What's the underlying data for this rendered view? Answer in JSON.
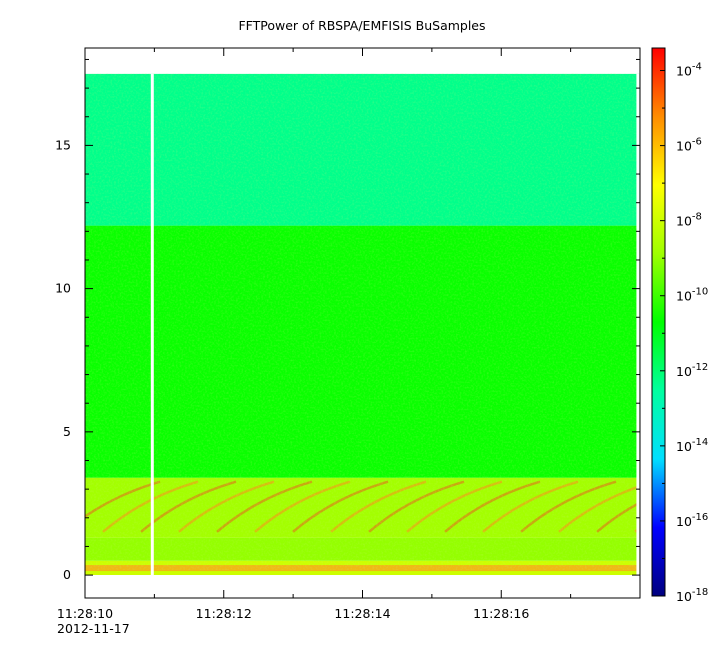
{
  "chart_data": {
    "type": "heatmap",
    "title": "FFTPower of RBSPA/EMFISIS  BuSamples",
    "xlabel": "",
    "ylabel": "",
    "x_ticks": [
      "11:28:10",
      "11:28:12",
      "11:28:14",
      "11:28:16"
    ],
    "x_date_label": "2012-11-17",
    "x_range_seconds": [
      10.0,
      18.0
    ],
    "y_ticks": [
      0,
      5,
      10,
      15
    ],
    "ylim": [
      -0.8,
      18.4
    ],
    "y_data_max": 17.5,
    "gaps_seconds": [
      10.97,
      17.97
    ],
    "bands": [
      {
        "y_from": 0.0,
        "y_to": 0.5,
        "level_log10": -8.0
      },
      {
        "y_from": 0.5,
        "y_to": 1.3,
        "level_log10": -9.0
      },
      {
        "y_from": 1.3,
        "y_to": 3.4,
        "level_log10": -8.8
      },
      {
        "y_from": 3.4,
        "y_to": 12.2,
        "level_log10": -10.6
      },
      {
        "y_from": 12.2,
        "y_to": 17.5,
        "level_log10": -12.3
      }
    ],
    "colorbar": {
      "scale": "log",
      "range_log10": [
        -18,
        -3.4
      ],
      "tick_exponents": [
        -4,
        -6,
        -8,
        -10,
        -12,
        -14,
        -16,
        -18
      ],
      "colors": [
        "#00007f",
        "#0000ff",
        "#00dfff",
        "#00ff9f",
        "#00ff00",
        "#9fff00",
        "#ffff00",
        "#ff8c00",
        "#ff0000"
      ]
    }
  }
}
